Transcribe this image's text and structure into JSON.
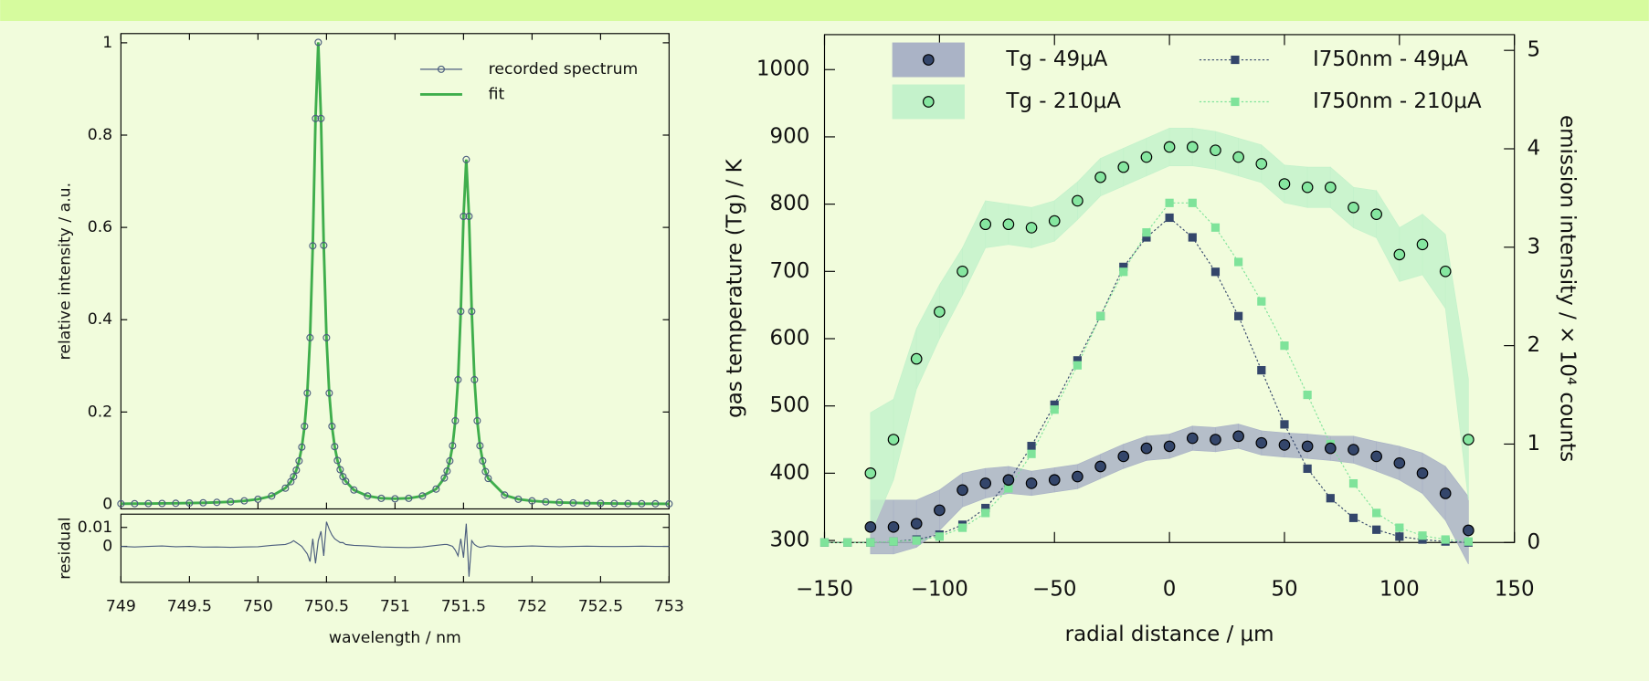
{
  "chart_data": [
    {
      "type": "line",
      "xlabel": "wavelength / nm",
      "ylabel": "relative intensity / a.u.",
      "xlim": [
        749,
        753
      ],
      "ylim": [
        -0.01,
        1.02
      ],
      "xticks": [
        749,
        749.5,
        750,
        750.5,
        751,
        751.5,
        752,
        752.5,
        753
      ],
      "yticks": [
        0,
        0.2,
        0.4,
        0.6,
        0.8,
        1
      ],
      "legend": "upper right",
      "x": [
        749,
        749.1,
        749.2,
        749.3,
        749.4,
        749.5,
        749.6,
        749.7,
        749.8,
        749.9,
        750,
        750.1,
        750.2,
        750.24,
        750.26,
        750.28,
        750.3,
        750.32,
        750.34,
        750.36,
        750.38,
        750.4,
        750.42,
        750.44,
        750.46,
        750.48,
        750.5,
        750.52,
        750.54,
        750.56,
        750.58,
        750.6,
        750.62,
        750.64,
        750.7,
        750.8,
        750.9,
        751,
        751.1,
        751.2,
        751.3,
        751.36,
        751.38,
        751.4,
        751.42,
        751.44,
        751.46,
        751.48,
        751.5,
        751.52,
        751.54,
        751.56,
        751.58,
        751.6,
        751.62,
        751.64,
        751.66,
        751.68,
        751.8,
        751.9,
        752,
        752.1,
        752.2,
        752.3,
        752.4,
        752.5,
        752.6,
        752.7,
        752.8,
        752.9,
        753
      ],
      "series": [
        {
          "name": "recorded spectrum",
          "color": "#4b5d7e",
          "marker": "circle",
          "values": [
            0.0012,
            0.0014,
            0.0016,
            0.0019,
            0.0022,
            0.0027,
            0.0033,
            0.0042,
            0.0054,
            0.0075,
            0.011,
            0.018,
            0.035,
            0.049,
            0.06,
            0.074,
            0.094,
            0.124,
            0.169,
            0.241,
            0.361,
            0.56,
            0.836,
            1.001,
            0.836,
            0.561,
            0.361,
            0.241,
            0.169,
            0.125,
            0.095,
            0.075,
            0.06,
            0.05,
            0.031,
            0.018,
            0.013,
            0.012,
            0.013,
            0.018,
            0.033,
            0.057,
            0.072,
            0.094,
            0.127,
            0.181,
            0.27,
            0.418,
            0.624,
            0.747,
            0.624,
            0.418,
            0.27,
            0.181,
            0.127,
            0.094,
            0.071,
            0.056,
            0.02,
            0.011,
            0.0074,
            0.0053,
            0.004,
            0.0031,
            0.0025,
            0.0021,
            0.0018,
            0.0015,
            0.0013,
            0.0012,
            0.001
          ]
        },
        {
          "name": "fit",
          "color": "#3fae4c",
          "values": [
            0.0012,
            0.0014,
            0.0016,
            0.0019,
            0.0022,
            0.0027,
            0.0033,
            0.0042,
            0.0054,
            0.0075,
            0.011,
            0.018,
            0.035,
            0.049,
            0.06,
            0.074,
            0.094,
            0.124,
            0.169,
            0.241,
            0.361,
            0.56,
            0.836,
            1.001,
            0.836,
            0.561,
            0.361,
            0.241,
            0.169,
            0.125,
            0.095,
            0.075,
            0.06,
            0.05,
            0.031,
            0.018,
            0.013,
            0.012,
            0.013,
            0.018,
            0.033,
            0.057,
            0.072,
            0.094,
            0.127,
            0.181,
            0.27,
            0.418,
            0.624,
            0.747,
            0.624,
            0.418,
            0.27,
            0.181,
            0.127,
            0.094,
            0.071,
            0.056,
            0.02,
            0.011,
            0.0074,
            0.0053,
            0.004,
            0.0031,
            0.0025,
            0.0021,
            0.0018,
            0.0015,
            0.0013,
            0.0012,
            0.001
          ]
        }
      ],
      "residual": {
        "ylabel": "residual",
        "ylim": [
          -0.019,
          0.017
        ],
        "yticks": [
          0,
          0.01
        ],
        "color": "#4b5d7e",
        "values": [
          0,
          -0.0003,
          0,
          0.0002,
          -0.0002,
          0,
          -0.0004,
          -0.0003,
          -0.0005,
          -0.0003,
          -0.0002,
          0.0005,
          0.001,
          0.002,
          0.003,
          0.002,
          0.001,
          0,
          -0.002,
          -0.004,
          -0.008,
          0.004,
          -0.009,
          0.003,
          0.008,
          -0.005,
          0.013,
          0.009,
          0.006,
          0.004,
          0.003,
          0.002,
          0.002,
          0.001,
          0.0005,
          0.0002,
          -0.0003,
          -0.0005,
          -0.0006,
          -0.0003,
          0.0005,
          0.001,
          0.001,
          0.0005,
          0,
          -0.002,
          -0.005,
          0.004,
          -0.006,
          0.012,
          -0.016,
          0.003,
          0.001,
          0,
          -0.0005,
          -0.0003,
          0,
          0.0003,
          -0.0002,
          0,
          0.0002,
          0,
          -0.0002,
          0,
          0.0001,
          0,
          -0.0001,
          0,
          0.0001,
          0,
          0
        ]
      }
    },
    {
      "type": "line",
      "xlabel": "radial distance / μm",
      "ylabel": "gas temperature (Tg) / K",
      "y2label": "emission intensity / × 10⁴ counts",
      "xlim": [
        -150,
        150
      ],
      "ylim": [
        297,
        1052
      ],
      "y2lim": [
        0,
        5.16
      ],
      "xticks": [
        {
          "value": -150,
          "label": "−150"
        },
        {
          "value": -100,
          "label": "−100"
        },
        {
          "value": -50,
          "label": "−50"
        },
        0,
        50,
        100,
        150
      ],
      "yticks": [
        300,
        400,
        500,
        600,
        700,
        800,
        900,
        1000
      ],
      "y2ticks": [
        0,
        1,
        2,
        3,
        4,
        5
      ],
      "legend": "upper left",
      "series": [
        {
          "name": "Tg - 49μA",
          "color": "#34466b",
          "band_color": "#aab3c6",
          "marker": "circle",
          "x": [
            -130,
            -120,
            -110,
            -100,
            -90,
            -80,
            -70,
            -60,
            -50,
            -40,
            -30,
            -20,
            -10,
            0,
            10,
            20,
            30,
            40,
            50,
            60,
            70,
            80,
            90,
            100,
            110,
            120,
            130
          ],
          "values": [
            320,
            320,
            325,
            345,
            375,
            385,
            390,
            385,
            390,
            395,
            410,
            425,
            437,
            440,
            452,
            450,
            455,
            445,
            442,
            440,
            437,
            435,
            425,
            415,
            400,
            370,
            315
          ],
          "errors": [
            40,
            40,
            35,
            30,
            25,
            22,
            20,
            18,
            18,
            18,
            18,
            18,
            18,
            18,
            18,
            18,
            18,
            18,
            18,
            18,
            18,
            20,
            22,
            25,
            30,
            40,
            50
          ]
        },
        {
          "name": "Tg - 210μA",
          "color": "#86e7a0",
          "band_color": "#c4f2cb",
          "marker": "circle",
          "x": [
            -130,
            -120,
            -110,
            -100,
            -90,
            -80,
            -70,
            -60,
            -50,
            -40,
            -30,
            -20,
            -10,
            0,
            10,
            20,
            30,
            40,
            50,
            60,
            70,
            80,
            90,
            100,
            110,
            120,
            130
          ],
          "values": [
            400,
            450,
            570,
            640,
            700,
            770,
            770,
            765,
            775,
            805,
            840,
            855,
            870,
            885,
            885,
            880,
            870,
            860,
            830,
            825,
            825,
            795,
            785,
            725,
            740,
            700,
            450
          ],
          "errors": [
            90,
            60,
            45,
            40,
            35,
            35,
            30,
            30,
            30,
            28,
            28,
            28,
            28,
            28,
            28,
            28,
            28,
            28,
            28,
            30,
            30,
            30,
            35,
            40,
            45,
            55,
            90
          ]
        },
        {
          "name": "I750nm - 49μA",
          "color": "#34466b",
          "marker": "square",
          "axis": "y2",
          "dashed": true,
          "x": [
            -150,
            -140,
            -130,
            -120,
            -110,
            -100,
            -90,
            -80,
            -70,
            -60,
            -50,
            -40,
            -30,
            -20,
            -10,
            0,
            10,
            20,
            30,
            40,
            50,
            60,
            70,
            80,
            90,
            100,
            110,
            120,
            130
          ],
          "values": [
            0,
            0,
            0,
            0.01,
            0.03,
            0.08,
            0.18,
            0.35,
            0.62,
            0.98,
            1.4,
            1.85,
            2.3,
            2.8,
            3.1,
            3.3,
            3.1,
            2.75,
            2.3,
            1.75,
            1.2,
            0.75,
            0.45,
            0.25,
            0.13,
            0.06,
            0.03,
            0.01,
            0
          ]
        },
        {
          "name": "I750nm - 210μA",
          "color": "#7fe39a",
          "marker": "square",
          "axis": "y2",
          "dashed": true,
          "x": [
            -150,
            -140,
            -130,
            -120,
            -110,
            -100,
            -90,
            -80,
            -70,
            -60,
            -50,
            -40,
            -30,
            -20,
            -10,
            0,
            10,
            20,
            30,
            40,
            50,
            60,
            70,
            80,
            90,
            100,
            110,
            120,
            130
          ],
          "values": [
            0,
            0,
            0,
            0.01,
            0.02,
            0.06,
            0.15,
            0.3,
            0.55,
            0.9,
            1.35,
            1.8,
            2.3,
            2.75,
            3.15,
            3.45,
            3.45,
            3.2,
            2.85,
            2.45,
            2,
            1.5,
            1,
            0.6,
            0.3,
            0.15,
            0.07,
            0.03,
            0.01
          ]
        }
      ]
    }
  ]
}
